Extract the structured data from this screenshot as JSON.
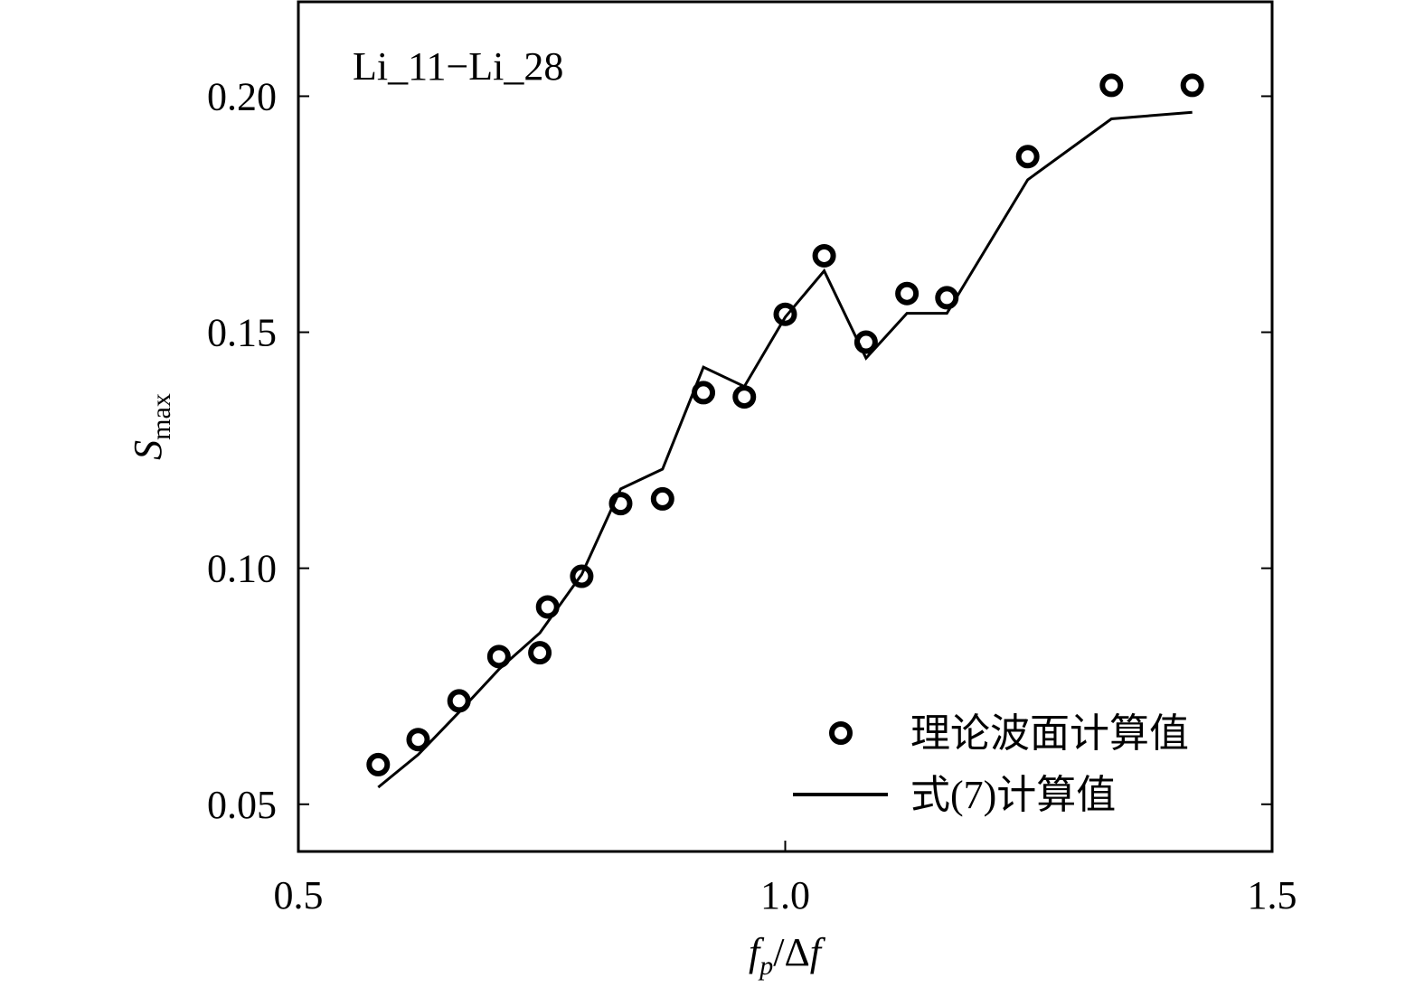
{
  "chart_data": {
    "type": "line",
    "annotation": "Li_11−Li_28",
    "xlabel": {
      "parts": [
        "f",
        "p",
        "/Δ",
        "f"
      ]
    },
    "ylabel": {
      "main": "S",
      "sub": "max"
    },
    "xlim": [
      0.5,
      1.5
    ],
    "ylim": [
      0.04,
      0.22
    ],
    "xticks": [
      0.5,
      {
        "value": 1.0,
        "label": "1.0"
      },
      1.5
    ],
    "yticks": [
      0.05,
      {
        "value": 0.1,
        "label": "0.10"
      },
      0.15,
      {
        "value": 0.2,
        "label": "0.20"
      }
    ],
    "legend": "lower right",
    "series": [
      {
        "name": "理论波面计算值",
        "mode": "markers",
        "color": "#000000",
        "x": [
          0.582,
          0.623,
          0.665,
          0.706,
          0.748,
          0.756,
          0.791,
          0.831,
          0.874,
          0.916,
          0.958,
          1.0,
          1.04,
          1.083,
          1.125,
          1.166,
          1.249,
          1.335,
          1.418
        ],
        "values": [
          0.0584,
          0.0637,
          0.0719,
          0.0813,
          0.0821,
          0.0918,
          0.0983,
          0.1137,
          0.1147,
          0.1372,
          0.1363,
          0.1538,
          0.1662,
          0.1479,
          0.1582,
          0.1573,
          0.1872,
          0.2023,
          0.2023
        ]
      },
      {
        "name": "式(7)计算值",
        "mode": "lines",
        "color": "#000000",
        "x": [
          0.582,
          0.623,
          0.665,
          0.706,
          0.748,
          0.791,
          0.831,
          0.874,
          0.916,
          0.958,
          1.0,
          1.04,
          1.083,
          1.125,
          1.166,
          1.249,
          1.335,
          1.418
        ],
        "values": [
          0.0536,
          0.0605,
          0.0695,
          0.0786,
          0.0863,
          0.0987,
          0.1168,
          0.121,
          0.1426,
          0.1385,
          0.1532,
          0.163,
          0.1445,
          0.154,
          0.154,
          0.1823,
          0.1952,
          0.1966
        ]
      }
    ]
  }
}
